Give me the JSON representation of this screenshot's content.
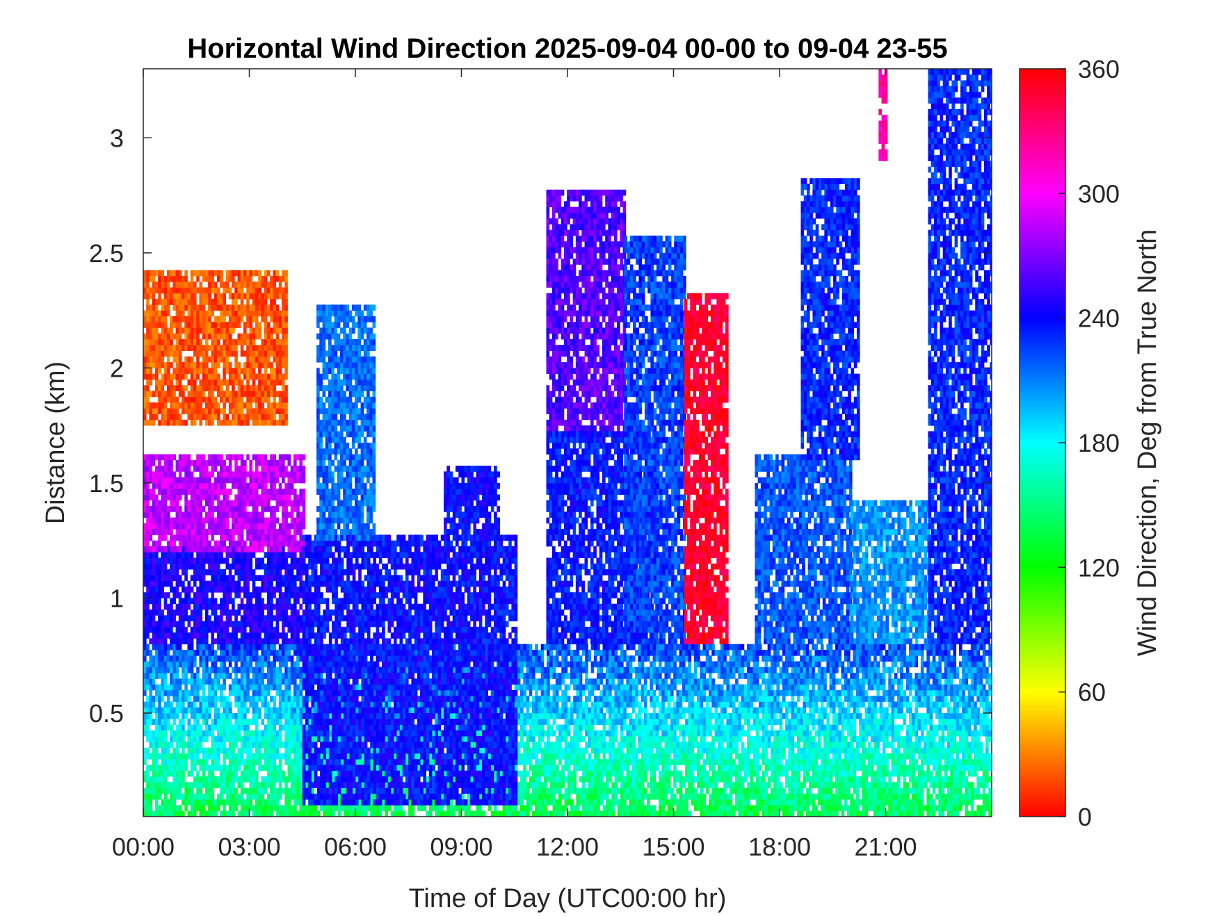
{
  "chart_data": {
    "type": "heatmap",
    "title": "Horizontal Wind Direction 2025-09-04 00-00 to 09-04 23-55",
    "xlabel": "Time of Day (UTC00:00 hr)",
    "ylabel": "Distance (km)",
    "colorbar_label": "Wind Direction, Deg from True North",
    "x_unit": "hours",
    "xlim": [
      0,
      24
    ],
    "ylim": [
      0.05,
      3.3
    ],
    "clim": [
      0,
      360
    ],
    "x_ticks": [
      {
        "value": 0,
        "label": "00:00"
      },
      {
        "value": 3,
        "label": "03:00"
      },
      {
        "value": 6,
        "label": "06:00"
      },
      {
        "value": 9,
        "label": "09:00"
      },
      {
        "value": 12,
        "label": "12:00"
      },
      {
        "value": 15,
        "label": "15:00"
      },
      {
        "value": 18,
        "label": "18:00"
      },
      {
        "value": 21,
        "label": "21:00"
      }
    ],
    "y_ticks": [
      {
        "value": 0.5,
        "label": "0.5"
      },
      {
        "value": 1,
        "label": "1"
      },
      {
        "value": 1.5,
        "label": "1.5"
      },
      {
        "value": 2,
        "label": "2"
      },
      {
        "value": 2.5,
        "label": "2.5"
      },
      {
        "value": 3,
        "label": "3"
      }
    ],
    "colorbar_ticks": [
      {
        "value": 0,
        "label": "0"
      },
      {
        "value": 60,
        "label": "60"
      },
      {
        "value": 120,
        "label": "120"
      },
      {
        "value": 180,
        "label": "180"
      },
      {
        "value": 240,
        "label": "240"
      },
      {
        "value": 300,
        "label": "300"
      },
      {
        "value": 360,
        "label": "360"
      }
    ],
    "colormap": "hsv",
    "time_step_hours": 0.0833,
    "range_step_km": 0.025,
    "regions": [
      {
        "x0": 0,
        "x1": 24,
        "y0": 0.05,
        "y1": 0.8,
        "dir": 180
      },
      {
        "x0": 0,
        "x1": 4.5,
        "y0": 0.8,
        "y1": 1.2,
        "dir": 245
      },
      {
        "x0": 0,
        "x1": 4.5,
        "y0": 1.2,
        "y1": 1.6,
        "dir": 285
      },
      {
        "x0": 0,
        "x1": 4,
        "y0": 1.75,
        "y1": 2.4,
        "dir": 20
      },
      {
        "x0": 4.5,
        "x1": 10.5,
        "y0": 0.1,
        "y1": 1.25,
        "dir": 238
      },
      {
        "x0": 4.9,
        "x1": 6.5,
        "y0": 1.25,
        "y1": 2.25,
        "dir": 215
      },
      {
        "x0": 8.5,
        "x1": 10,
        "y0": 1.25,
        "y1": 1.55,
        "dir": 240
      },
      {
        "x0": 11.4,
        "x1": 13.6,
        "y0": 1.7,
        "y1": 2.75,
        "dir": 260
      },
      {
        "x0": 11.4,
        "x1": 14.5,
        "y0": 0.8,
        "y1": 1.7,
        "dir": 235
      },
      {
        "x0": 13.6,
        "x1": 15.3,
        "y0": 0.8,
        "y1": 2.55,
        "dir": 225
      },
      {
        "x0": 15.3,
        "x1": 16.5,
        "y0": 0.8,
        "y1": 2.3,
        "dir": 350
      },
      {
        "x0": 17.3,
        "x1": 20,
        "y0": 0.8,
        "y1": 1.6,
        "dir": 220
      },
      {
        "x0": 18.6,
        "x1": 20.2,
        "y0": 1.6,
        "y1": 2.8,
        "dir": 232
      },
      {
        "x0": 20,
        "x1": 22.2,
        "y0": 0.8,
        "y1": 1.4,
        "dir": 205
      },
      {
        "x0": 22.2,
        "x1": 24,
        "y0": 0.8,
        "y1": 3.3,
        "dir": 232
      },
      {
        "x0": 20.8,
        "x1": 21,
        "y0": 2.9,
        "y1": 3.3,
        "dir": 320
      }
    ],
    "grid": false,
    "box": true
  }
}
